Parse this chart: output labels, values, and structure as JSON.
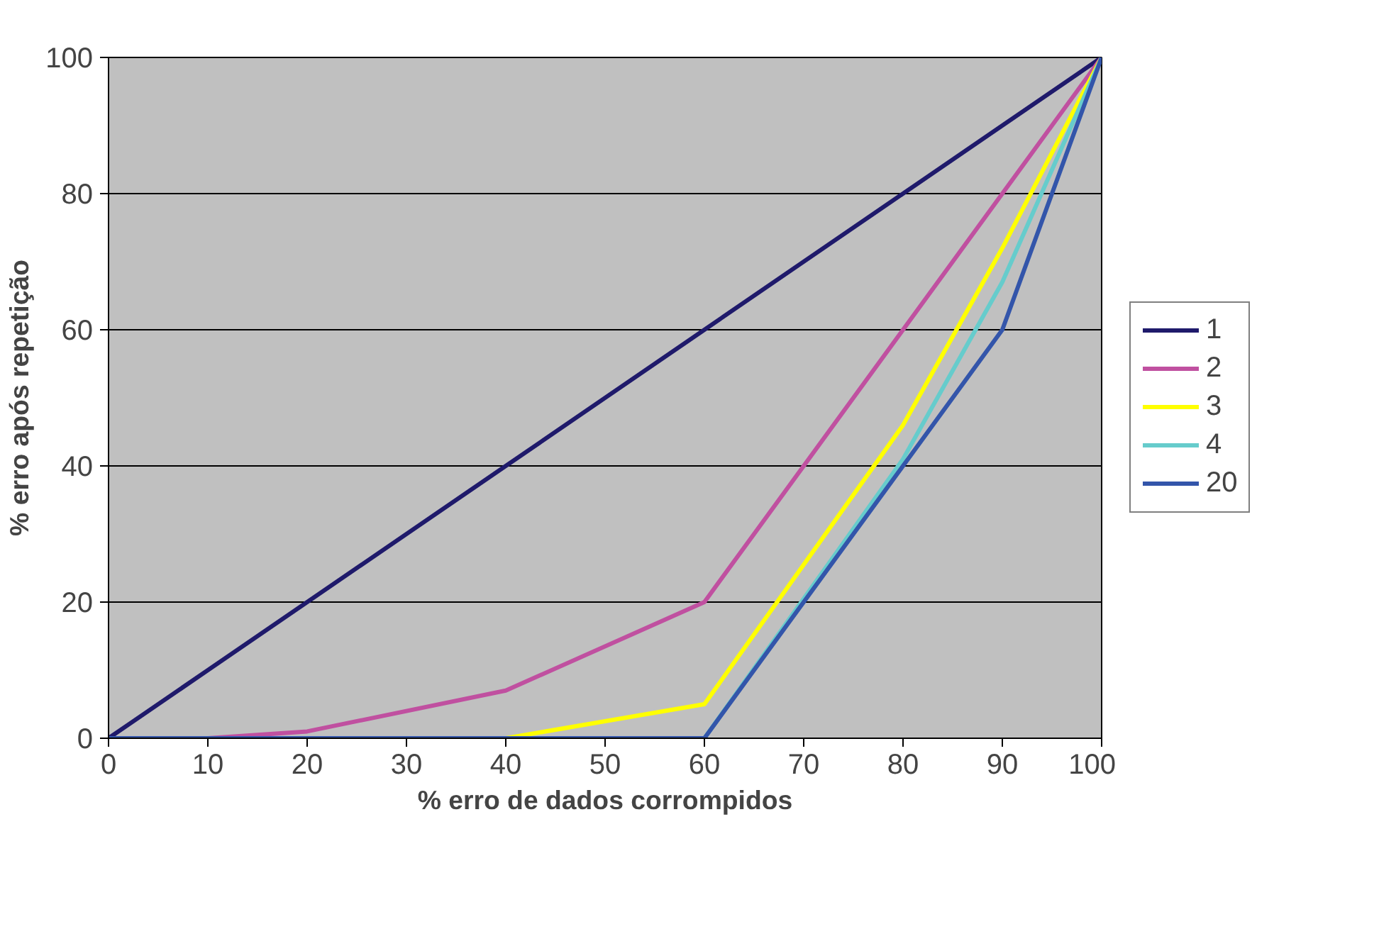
{
  "chart_data": {
    "type": "line",
    "xlabel": "% erro de dados corrompidos",
    "ylabel": "% erro após repetição",
    "x": [
      0,
      10,
      20,
      40,
      60,
      80,
      90,
      100
    ],
    "series": [
      {
        "name": "1",
        "color": "#1f1a6b",
        "values": [
          0,
          10,
          20,
          40,
          60,
          80,
          90,
          100
        ]
      },
      {
        "name": "2",
        "color": "#c050a0",
        "values": [
          0,
          0,
          1,
          7,
          20,
          60,
          80,
          100
        ]
      },
      {
        "name": "3",
        "color": "#ffff00",
        "x": [
          40,
          60,
          80,
          90,
          100
        ],
        "values": [
          0,
          5,
          46,
          72,
          100
        ]
      },
      {
        "name": "4",
        "color": "#66cccc",
        "x": [
          60,
          80,
          90,
          100
        ],
        "values": [
          0,
          41,
          67,
          100
        ]
      },
      {
        "name": "20",
        "color": "#3355aa",
        "values": [
          0,
          0,
          0,
          0,
          0,
          40,
          60,
          100
        ]
      }
    ],
    "xlim": [
      0,
      100
    ],
    "ylim": [
      0,
      100
    ],
    "xticks": [
      0,
      10,
      20,
      30,
      40,
      50,
      60,
      70,
      80,
      90,
      100
    ],
    "yticks": [
      0,
      20,
      40,
      60,
      80,
      100
    ],
    "grid": "y",
    "legend": "right",
    "marker": "none",
    "line_style": "solid"
  }
}
